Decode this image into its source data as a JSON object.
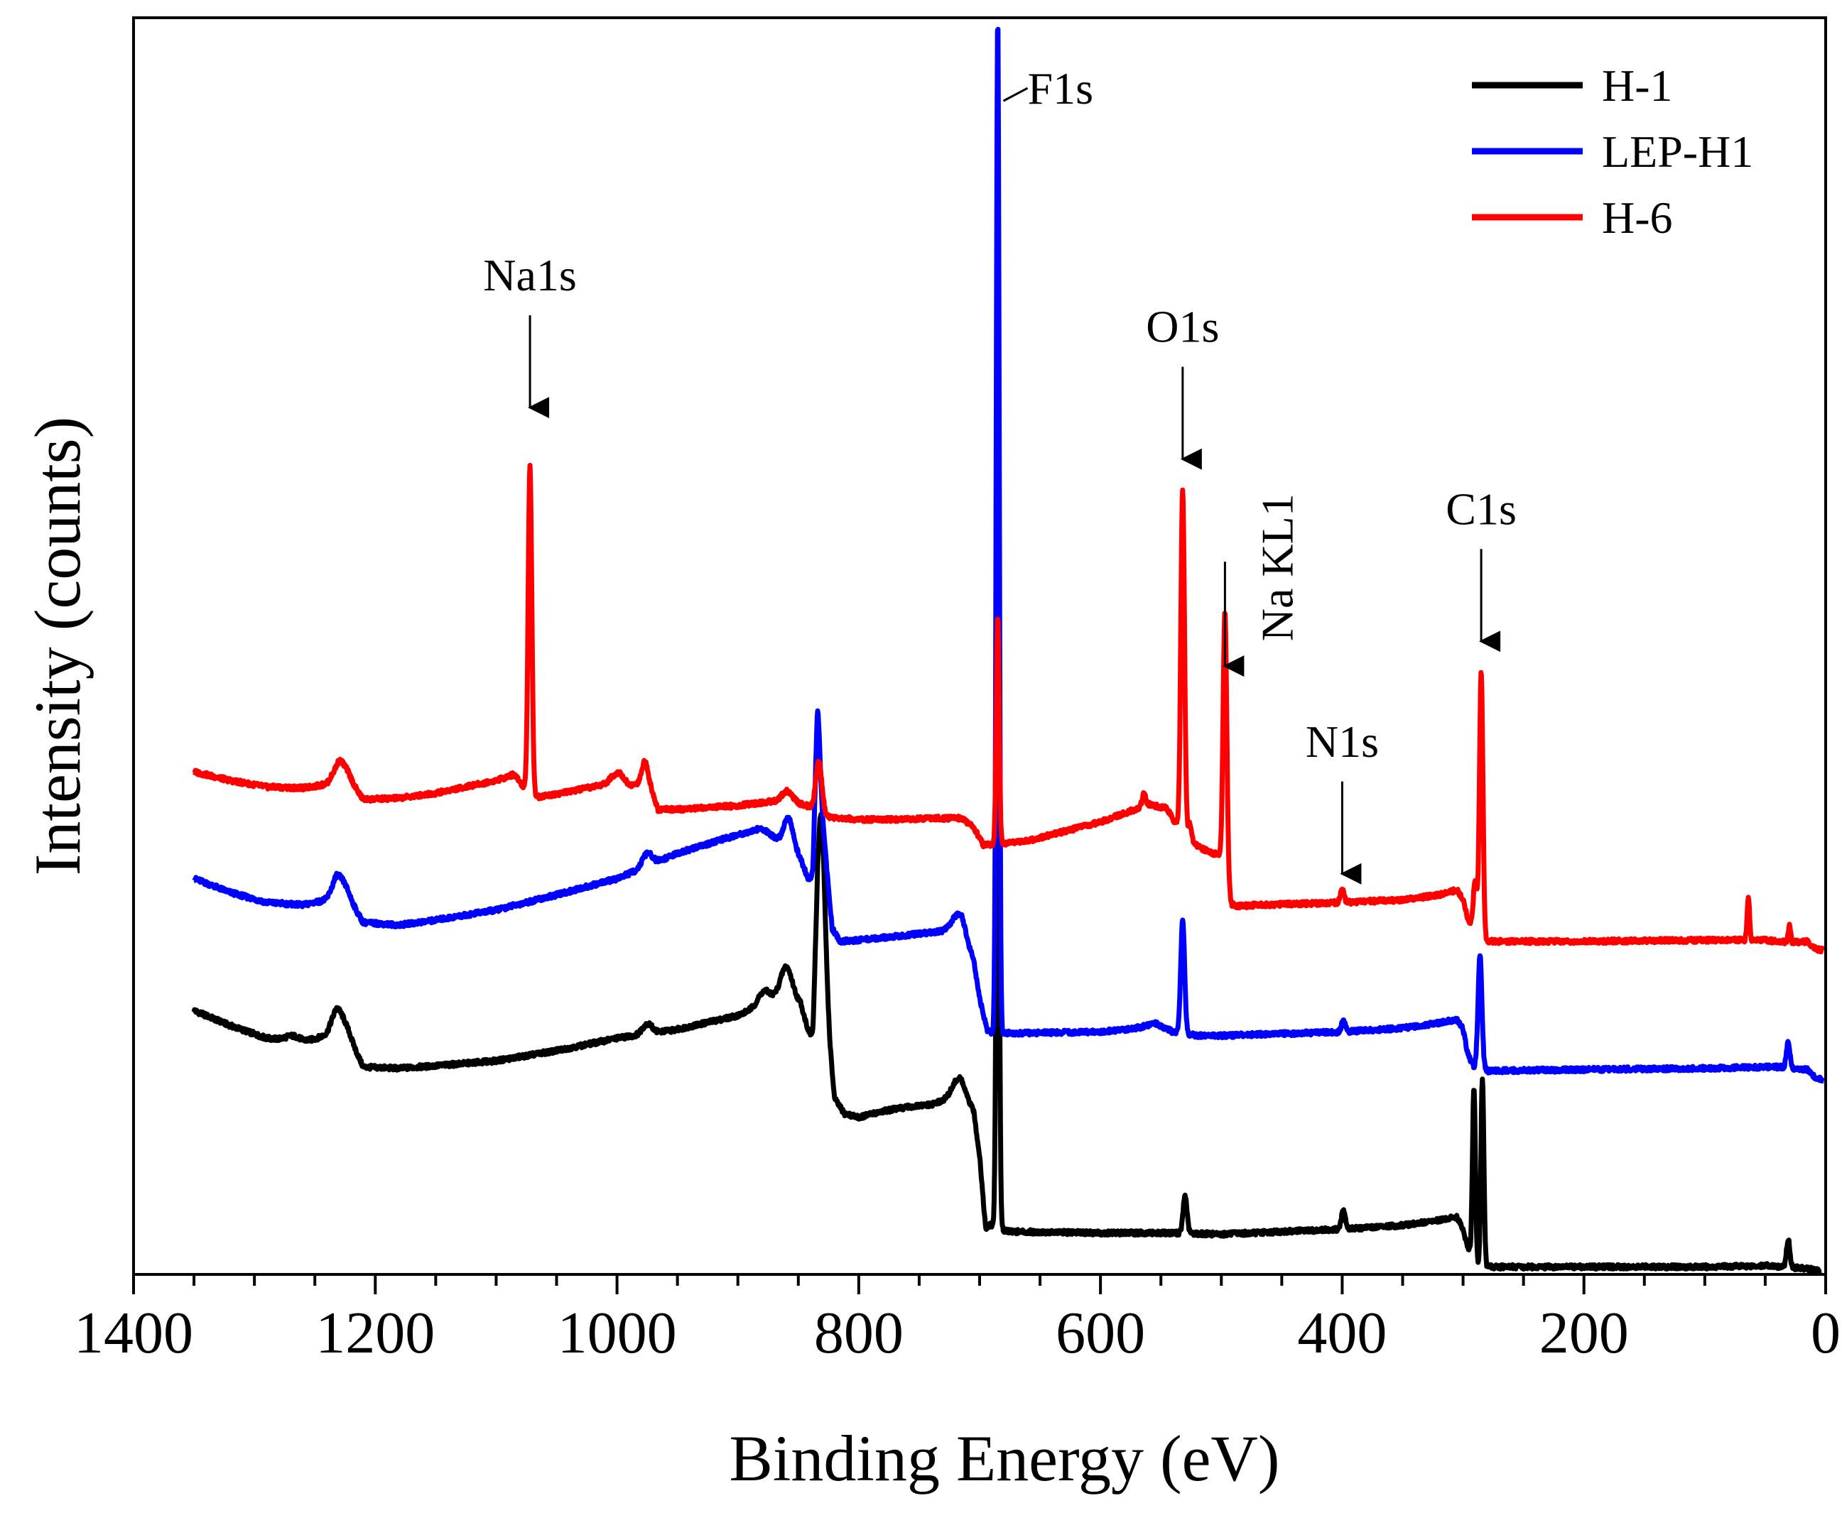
{
  "chart_data": {
    "type": "line",
    "title": "",
    "xlabel": "Binding Energy (eV)",
    "ylabel": "Intensity (counts)",
    "xlim": [
      1400,
      0
    ],
    "ylim": [
      0,
      100
    ],
    "x_reversed": true,
    "yticks_shown": false,
    "xticks": [
      1400,
      1200,
      1000,
      800,
      600,
      400,
      200,
      0
    ],
    "legend_position": "top-right",
    "series": [
      {
        "name": "H-1",
        "color": "#000000",
        "baseline": [
          [
            1350,
            21.0
          ],
          [
            1320,
            19.8
          ],
          [
            1290,
            18.8
          ],
          [
            1260,
            18.5
          ],
          [
            1240,
            19.0
          ],
          [
            1232,
            20.3
          ],
          [
            1222,
            19.0
          ],
          [
            1210,
            16.5
          ],
          [
            1180,
            16.4
          ],
          [
            1150,
            16.6
          ],
          [
            1100,
            17.0
          ],
          [
            1050,
            17.8
          ],
          [
            1000,
            18.8
          ],
          [
            950,
            19.5
          ],
          [
            900,
            20.6
          ],
          [
            880,
            21.5
          ],
          [
            860,
            22.0
          ],
          [
            848,
            21.5
          ],
          [
            842,
            19.5
          ],
          [
            838,
            18.5
          ],
          [
            836,
            22.0
          ],
          [
            834,
            24.0
          ],
          [
            826,
            20.0
          ],
          [
            820,
            14.0
          ],
          [
            812,
            12.8
          ],
          [
            800,
            12.5
          ],
          [
            780,
            13.0
          ],
          [
            760,
            13.3
          ],
          [
            740,
            13.5
          ],
          [
            725,
            14.0
          ],
          [
            715,
            14.5
          ],
          [
            705,
            13.0
          ],
          [
            700,
            9.5
          ],
          [
            695,
            3.6
          ],
          [
            691,
            4.0
          ],
          [
            686,
            3.6
          ],
          [
            670,
            3.4
          ],
          [
            600,
            3.3
          ],
          [
            540,
            3.3
          ],
          [
            500,
            3.2
          ],
          [
            400,
            3.6
          ],
          [
            350,
            3.9
          ],
          [
            320,
            4.3
          ],
          [
            305,
            4.6
          ],
          [
            300,
            3.5
          ],
          [
            296,
            2.2
          ],
          [
            290,
            0.7
          ],
          [
            278,
            0.6
          ],
          [
            200,
            0.6
          ],
          [
            100,
            0.6
          ],
          [
            50,
            0.7
          ],
          [
            35,
            0.6
          ],
          [
            20,
            0.5
          ],
          [
            10,
            0.4
          ],
          [
            5,
            0.2
          ]
        ],
        "peaks": [
          [
            1268,
            0.4,
            6
          ],
          [
            1230,
            1.0,
            6
          ],
          [
            975,
            0.8,
            4
          ],
          [
            878,
            1.0,
            5
          ],
          [
            860,
            2.5,
            5
          ],
          [
            831,
            14.0,
            3
          ],
          [
            718,
            1.2,
            5
          ],
          [
            685,
            48.0,
            1.2
          ],
          [
            530,
            3.0,
            1.6
          ],
          [
            399,
            1.6,
            1.5
          ],
          [
            291,
            14.0,
            1.2
          ],
          [
            284,
            15.0,
            1.2
          ],
          [
            31,
            2.2,
            1.4
          ]
        ]
      },
      {
        "name": "LEP-H1",
        "color": "#0000FF",
        "baseline": [
          [
            1350,
            31.5
          ],
          [
            1320,
            30.4
          ],
          [
            1290,
            29.6
          ],
          [
            1260,
            29.4
          ],
          [
            1240,
            29.8
          ],
          [
            1232,
            31.0
          ],
          [
            1222,
            29.8
          ],
          [
            1210,
            28.0
          ],
          [
            1180,
            27.8
          ],
          [
            1150,
            28.2
          ],
          [
            1100,
            29.0
          ],
          [
            1050,
            30.2
          ],
          [
            1000,
            31.5
          ],
          [
            950,
            33.5
          ],
          [
            900,
            35.0
          ],
          [
            880,
            35.5
          ],
          [
            860,
            34.0
          ],
          [
            848,
            33.0
          ],
          [
            842,
            31.5
          ],
          [
            838,
            31.5
          ],
          [
            836,
            36.0
          ],
          [
            834,
            40.0
          ],
          [
            828,
            34.0
          ],
          [
            822,
            27.5
          ],
          [
            815,
            26.5
          ],
          [
            800,
            26.6
          ],
          [
            780,
            26.8
          ],
          [
            760,
            27.0
          ],
          [
            740,
            27.2
          ],
          [
            725,
            27.4
          ],
          [
            715,
            27.8
          ],
          [
            705,
            25.0
          ],
          [
            700,
            22.0
          ],
          [
            694,
            19.5
          ],
          [
            689,
            19.2
          ],
          [
            686,
            19.2
          ],
          [
            670,
            19.2
          ],
          [
            600,
            19.3
          ],
          [
            570,
            19.6
          ],
          [
            555,
            20.0
          ],
          [
            540,
            19.3
          ],
          [
            520,
            19.0
          ],
          [
            500,
            19.0
          ],
          [
            400,
            19.3
          ],
          [
            350,
            19.6
          ],
          [
            320,
            20.0
          ],
          [
            305,
            20.3
          ],
          [
            300,
            19.5
          ],
          [
            296,
            17.5
          ],
          [
            291,
            16.5
          ],
          [
            280,
            16.2
          ],
          [
            200,
            16.3
          ],
          [
            100,
            16.4
          ],
          [
            50,
            16.5
          ],
          [
            35,
            16.5
          ],
          [
            15,
            16.3
          ],
          [
            8,
            15.6
          ],
          [
            2,
            15.5
          ]
        ],
        "peaks": [
          [
            1228,
            1.0,
            6
          ],
          [
            975,
            1.0,
            4
          ],
          [
            858,
            2.5,
            4
          ],
          [
            834,
            5.0,
            2
          ],
          [
            718,
            1.0,
            5
          ],
          [
            685,
            81.0,
            1.2
          ],
          [
            532,
            9.0,
            1.6
          ],
          [
            399,
            1.0,
            1.5
          ],
          [
            286,
            9.0,
            1.6
          ],
          [
            31,
            2.0,
            1.4
          ]
        ]
      },
      {
        "name": "H-6",
        "color": "#FF0000",
        "baseline": [
          [
            1350,
            40.0
          ],
          [
            1320,
            39.3
          ],
          [
            1290,
            38.8
          ],
          [
            1260,
            38.7
          ],
          [
            1240,
            39.0
          ],
          [
            1230,
            40.0
          ],
          [
            1222,
            39.2
          ],
          [
            1210,
            37.8
          ],
          [
            1180,
            37.9
          ],
          [
            1150,
            38.3
          ],
          [
            1100,
            39.3
          ],
          [
            1085,
            39.8
          ],
          [
            1075,
            38.5
          ],
          [
            1065,
            38.0
          ],
          [
            1040,
            38.4
          ],
          [
            1010,
            39.0
          ],
          [
            998,
            39.5
          ],
          [
            990,
            38.9
          ],
          [
            982,
            39.0
          ],
          [
            972,
            38.7
          ],
          [
            966,
            37.0
          ],
          [
            950,
            37.0
          ],
          [
            900,
            37.3
          ],
          [
            860,
            37.8
          ],
          [
            840,
            37.2
          ],
          [
            826,
            36.4
          ],
          [
            800,
            36.2
          ],
          [
            770,
            36.2
          ],
          [
            740,
            36.3
          ],
          [
            715,
            36.3
          ],
          [
            705,
            35.6
          ],
          [
            697,
            34.2
          ],
          [
            690,
            34.2
          ],
          [
            660,
            34.5
          ],
          [
            640,
            35.0
          ],
          [
            600,
            36.0
          ],
          [
            560,
            37.4
          ],
          [
            545,
            37.1
          ],
          [
            540,
            36.2
          ],
          [
            535,
            35.6
          ],
          [
            530,
            35.4
          ],
          [
            522,
            34.2
          ],
          [
            510,
            33.6
          ],
          [
            503,
            33.4
          ],
          [
            497,
            32.9
          ],
          [
            492,
            29.5
          ],
          [
            488,
            29.3
          ],
          [
            470,
            29.4
          ],
          [
            430,
            29.5
          ],
          [
            400,
            29.6
          ],
          [
            350,
            29.8
          ],
          [
            320,
            30.2
          ],
          [
            305,
            30.6
          ],
          [
            300,
            29.8
          ],
          [
            296,
            28.3
          ],
          [
            292,
            27.6
          ],
          [
            280,
            26.5
          ],
          [
            200,
            26.5
          ],
          [
            100,
            26.6
          ],
          [
            70,
            26.6
          ],
          [
            50,
            26.6
          ],
          [
            30,
            26.4
          ],
          [
            15,
            26.5
          ],
          [
            8,
            25.9
          ],
          [
            2,
            25.8
          ]
        ],
        "peaks": [
          [
            1227,
            1.0,
            6
          ],
          [
            1072,
            26.0,
            1.5
          ],
          [
            1000,
            0.5,
            5
          ],
          [
            977,
            2.0,
            2.5
          ],
          [
            859,
            0.7,
            4
          ],
          [
            833,
            4.0,
            2.5
          ],
          [
            685,
            18.0,
            1.2
          ],
          [
            564,
            1.0,
            1.5
          ],
          [
            532,
            27.0,
            1.5
          ],
          [
            526,
            1.0,
            1.2
          ],
          [
            497,
            20.0,
            1.5
          ],
          [
            400,
            1.0,
            1.5
          ],
          [
            290,
            4.0,
            1.5
          ],
          [
            285,
            21.0,
            1.4
          ],
          [
            64,
            3.4,
            1.0
          ],
          [
            30,
            1.3,
            1.0
          ]
        ]
      }
    ],
    "annotations": [
      {
        "text": "Na1s",
        "x": 1072,
        "y": 78.3,
        "arrow": true
      },
      {
        "text": "F1s",
        "x": 685,
        "y": 94.4,
        "arrow": false
      },
      {
        "text": "O1s",
        "x": 532,
        "y": 74.2,
        "arrow": true
      },
      {
        "text": "Na KL1",
        "x": 497,
        "y": 56.6,
        "arrow": true,
        "vertical": true
      },
      {
        "text": "N1s",
        "x": 400,
        "y": 41.2,
        "arrow": true
      },
      {
        "text": "C1s",
        "x": 285,
        "y": 59.7,
        "arrow": true
      }
    ]
  }
}
